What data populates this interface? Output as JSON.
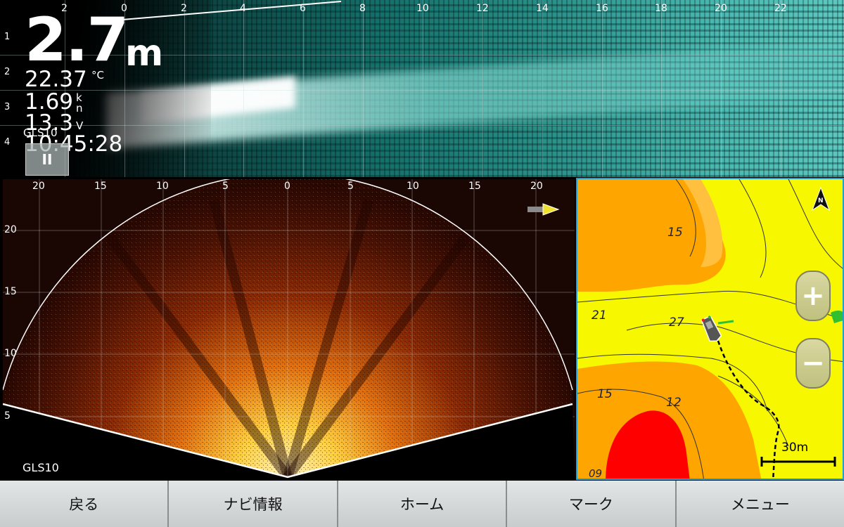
{
  "top_sonar": {
    "x_labels": [
      "2",
      "0",
      "2",
      "4",
      "6",
      "8",
      "10",
      "12",
      "14",
      "16",
      "18",
      "20",
      "22"
    ],
    "y_labels": [
      "1",
      "2",
      "3",
      "4"
    ],
    "depth": {
      "value": "2.7",
      "unit": "m"
    },
    "water_temp": {
      "value": "22.37",
      "unit": "°C"
    },
    "speed": {
      "value": "1.69",
      "unit": "kn"
    },
    "voltage": {
      "value": "13.3",
      "unit": "V"
    },
    "time": "10:45:28",
    "source": "GLS10",
    "pause_icon": "pause-icon",
    "pause_label": "II"
  },
  "forward_sonar": {
    "x_labels": [
      "20",
      "15",
      "10",
      "5",
      "0",
      "5",
      "10",
      "15",
      "20"
    ],
    "y_labels": [
      "20",
      "15",
      "10",
      "5"
    ],
    "source": "GLS10",
    "transducer_icon": "transducer-icon"
  },
  "map": {
    "contour_labels": [
      "15",
      "21",
      "27",
      "15",
      "12",
      "09"
    ],
    "scale_label": "30m",
    "zoom_in_label": "+",
    "zoom_out_label": "−",
    "north_icon": "north-arrow-icon",
    "north_label": "N",
    "boat_icon": "boat-icon",
    "colors": {
      "shallow": "#f7f700",
      "mid": "#ffa500",
      "deep_red": "#ff0000",
      "border": "#1ea0d0"
    }
  },
  "toolbar": {
    "back": "戻る",
    "nav_info": "ナビ情報",
    "home": "ホーム",
    "mark": "マーク",
    "menu": "メニュー"
  }
}
